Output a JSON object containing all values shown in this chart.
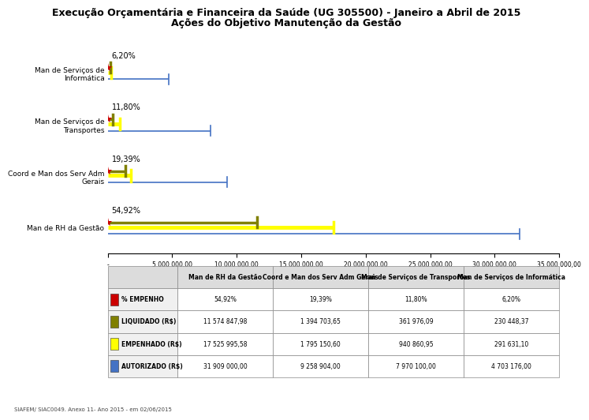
{
  "title_line1": "Execução Orçamentária e Financeira da Saúde (UG 305500) - Janeiro a Abril de 2015",
  "title_line2": "Ações do Objetivo Manutenção da Gestão",
  "categories": [
    "Man de Serviços de\nInformática",
    "Man de Serviços de\nTransportes",
    "Coord e Man dos Serv Adm\nGerais",
    "Man de RH da Gestão"
  ],
  "categories_short": [
    "Man de RH da Gestão",
    "Coord e Man dos Serv Adm Gerais",
    "Man de Serviços de Transportes",
    "Man de Serviços de Informática"
  ],
  "pct_labels": [
    "6,20%",
    "11,80%",
    "19,39%",
    "54,92%"
  ],
  "liquidado": [
    230448.37,
    361976.09,
    1394703.65,
    11574847.98
  ],
  "empenhado": [
    291631.1,
    940860.95,
    1795150.6,
    17525995.58
  ],
  "autorizado": [
    4703176.0,
    7970100.0,
    9258904.0,
    31909000.0
  ],
  "xlim_max": 35000000,
  "xtick_values": [
    0,
    5000000,
    10000000,
    15000000,
    20000000,
    25000000,
    30000000,
    35000000
  ],
  "xtick_labels": [
    "-",
    "5 000 000,00",
    "10 000 000,00",
    "15 000 000,00",
    "20 000 000,00",
    "25 000 000,00",
    "30 000 000,00",
    "35 000 000,00"
  ],
  "color_liquidado": "#808000",
  "color_empenhado": "#BFBF00",
  "color_autorizado": "#4472C4",
  "color_empenho_pct": "#CC0000",
  "footer": "SIAFEM/ SIAC0049. Anexo 11- Ano 2015 - em 02/06/2015",
  "table_row_labels": [
    "% EMPENHO",
    "LIQUIDADO (R$)",
    "EMPENHADO (R$)",
    "AUTORIZADO (R$)"
  ],
  "table_row_colors": [
    "#CC0000",
    "#808000",
    "#FFFF00",
    "#4472C4"
  ],
  "table_data_pct": [
    "54,92%",
    "19,39%",
    "11,80%",
    "6,20%"
  ],
  "table_data_liq": [
    "11 574 847,98",
    "1 394 703,65",
    "361 976,09",
    "230 448,37"
  ],
  "table_data_emp": [
    "17 525 995,58",
    "1 795 150,60",
    "940 860,95",
    "291 631,10"
  ],
  "table_data_aut": [
    "31 909 000,00",
    "9 258 904,00",
    "7 970 100,00",
    "4 703 176,00"
  ]
}
